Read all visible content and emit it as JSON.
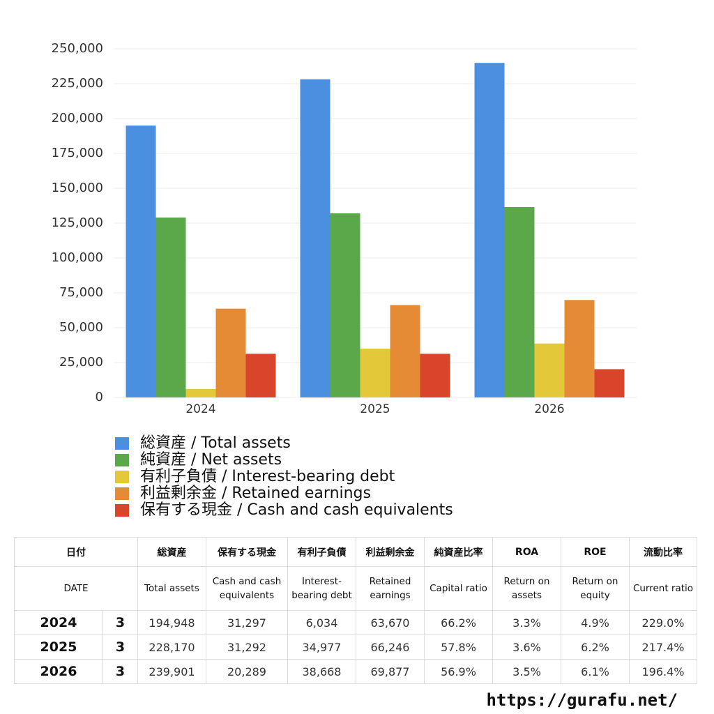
{
  "chart_data": {
    "type": "bar",
    "categories": [
      "2024",
      "2025",
      "2026"
    ],
    "series": [
      {
        "name": "総資産 / Total assets",
        "color": "#4a8fe0",
        "values": [
          194948,
          228170,
          239901
        ]
      },
      {
        "name": "純資産 / Net assets",
        "color": "#5aa84a",
        "values": [
          129000,
          132000,
          136500
        ]
      },
      {
        "name": "有利子負債 / Interest-bearing debt",
        "color": "#e3c93a",
        "values": [
          6034,
          34977,
          38668
        ]
      },
      {
        "name": "利益剰余金 / Retained earnings",
        "color": "#e58a35",
        "values": [
          63670,
          66246,
          69877
        ]
      },
      {
        "name": "保有する現金 /  Cash and cash equivalents",
        "color": "#d9452a",
        "values": [
          31297,
          31292,
          20289
        ]
      }
    ],
    "ylim": [
      0,
      250000
    ],
    "yticks": [
      0,
      {
        "value": 25000,
        "label": "25,000"
      },
      {
        "value": 50000,
        "label": "50,000"
      },
      {
        "value": 75000,
        "label": "75,000"
      },
      {
        "value": 100000,
        "label": "100,000"
      },
      {
        "value": 125000,
        "label": "125,000"
      },
      {
        "value": 150000,
        "label": "150,000"
      },
      {
        "value": 175000,
        "label": "175,000"
      },
      {
        "value": 200000,
        "label": "200,000"
      },
      {
        "value": 225000,
        "label": "225,000"
      },
      {
        "value": 250000,
        "label": "250,000"
      }
    ],
    "grid": true
  },
  "table": {
    "header_jp": [
      "日付",
      "総資産",
      "保有する現金",
      "有利子負債",
      "利益剰余金",
      "純資産比率",
      "ROA",
      "ROE",
      "流動比率"
    ],
    "header_en": [
      "DATE",
      "Total assets",
      "Cash and cash equivalents",
      "Interest-bearing debt",
      "Retained earnings",
      "Capital ratio",
      "Return on assets",
      "Return on equity",
      "Current ratio"
    ],
    "rows": [
      [
        "2024",
        "3",
        "194,948",
        "31,297",
        "6,034",
        "63,670",
        "66.2%",
        "3.3%",
        "4.9%",
        "229.0%"
      ],
      [
        "2025",
        "3",
        "228,170",
        "31,292",
        "34,977",
        "66,246",
        "57.8%",
        "3.6%",
        "6.2%",
        "217.4%"
      ],
      [
        "2026",
        "3",
        "239,901",
        "20,289",
        "38,668",
        "69,877",
        "56.9%",
        "3.5%",
        "6.1%",
        "196.4%"
      ]
    ]
  },
  "footer": "https://gurafu.net/"
}
